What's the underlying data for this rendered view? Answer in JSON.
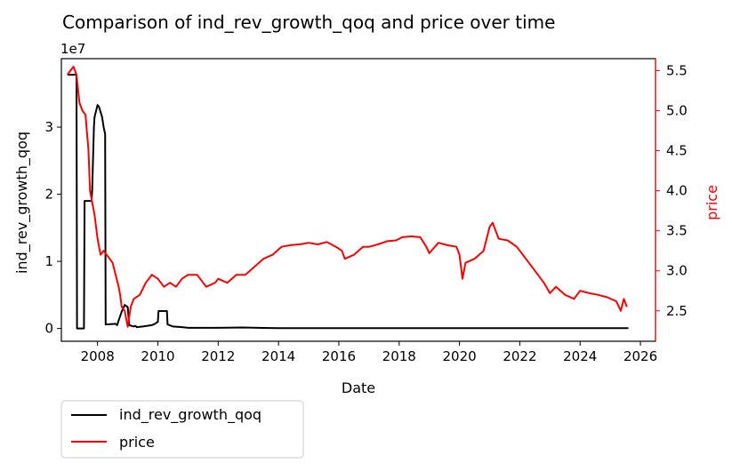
{
  "chart_data": {
    "type": "line",
    "title": "Comparison of ind_rev_growth_qoq and price over time",
    "xlabel": "Date",
    "x_ticks": [
      "2008",
      "2010",
      "2012",
      "2014",
      "2016",
      "2018",
      "2020",
      "2022",
      "2024",
      "2026"
    ],
    "x_range": [
      2006.8,
      2026.5
    ],
    "left_axis": {
      "label": "ind_rev_growth_qoq",
      "offset_text": "1e7",
      "ticks": [
        "0",
        "1",
        "2",
        "3"
      ],
      "range": [
        -1.9,
        40.2
      ],
      "unit_multiplier": 1
    },
    "right_axis": {
      "label": "price",
      "ticks": [
        "2.5",
        "3.0",
        "3.5",
        "4.0",
        "4.5",
        "5.0",
        "5.5"
      ],
      "range": [
        2.12,
        5.65
      ],
      "color": "#ff0000"
    },
    "legend": {
      "placement": "below-left"
    },
    "series": [
      {
        "name": "ind_rev_growth_qoq",
        "axis": "left",
        "color": "#000000",
        "units": "1e6",
        "x": [
          2007.0,
          2007.3,
          2007.32,
          2007.55,
          2007.57,
          2007.8,
          2007.82,
          2007.88,
          2007.9,
          2008.0,
          2008.05,
          2008.15,
          2008.2,
          2008.25,
          2008.27,
          2008.6,
          2008.65,
          2008.7,
          2008.8,
          2008.9,
          2009.0,
          2009.05,
          2009.2,
          2009.25,
          2009.3,
          2009.5,
          2009.8,
          2009.9,
          2010.0,
          2010.02,
          2010.3,
          2010.32,
          2010.5,
          2010.8,
          2011.0,
          2012.0,
          2012.8,
          2013.5,
          2014.0,
          2016.0,
          2017.0,
          2018.0,
          2019.0,
          2020.0,
          2022.0,
          2024.0,
          2025.6
        ],
        "values": [
          37.8,
          37.8,
          0.0,
          0.0,
          19.0,
          19.0,
          20.5,
          30.0,
          31.5,
          33.3,
          33.0,
          31.5,
          30.0,
          29.0,
          0.6,
          0.7,
          0.5,
          1.2,
          2.5,
          3.5,
          3.2,
          0.5,
          0.3,
          0.4,
          0.2,
          0.3,
          0.5,
          0.7,
          1.0,
          2.6,
          2.6,
          0.6,
          0.3,
          0.2,
          0.1,
          0.1,
          0.15,
          0.08,
          0.05,
          0.05,
          0.06,
          0.05,
          0.05,
          0.05,
          0.05,
          0.05,
          0.05
        ]
      },
      {
        "name": "price",
        "axis": "right",
        "color": "#ff0000",
        "units": "price",
        "x": [
          2007.0,
          2007.1,
          2007.2,
          2007.3,
          2007.4,
          2007.5,
          2007.6,
          2007.7,
          2007.75,
          2007.8,
          2007.85,
          2007.9,
          2008.0,
          2008.1,
          2008.2,
          2008.3,
          2008.4,
          2008.5,
          2008.6,
          2008.7,
          2008.75,
          2008.8,
          2008.9,
          2009.0,
          2009.1,
          2009.2,
          2009.4,
          2009.6,
          2009.8,
          2010.0,
          2010.2,
          2010.4,
          2010.6,
          2010.8,
          2011.0,
          2011.3,
          2011.6,
          2011.9,
          2012.0,
          2012.3,
          2012.6,
          2012.9,
          2013.2,
          2013.5,
          2013.8,
          2014.1,
          2014.4,
          2014.7,
          2015.0,
          2015.3,
          2015.6,
          2015.9,
          2016.1,
          2016.2,
          2016.5,
          2016.8,
          2017.0,
          2017.3,
          2017.6,
          2017.9,
          2018.1,
          2018.4,
          2018.7,
          2018.9,
          2019.0,
          2019.3,
          2019.6,
          2019.9,
          2020.0,
          2020.1,
          2020.2,
          2020.5,
          2020.8,
          2021.0,
          2021.1,
          2021.3,
          2021.6,
          2021.9,
          2022.2,
          2022.5,
          2022.8,
          2023.0,
          2023.2,
          2023.5,
          2023.8,
          2024.0,
          2024.3,
          2024.6,
          2024.9,
          2025.2,
          2025.35,
          2025.45,
          2025.55
        ],
        "values": [
          5.45,
          5.5,
          5.55,
          5.45,
          5.1,
          5.0,
          4.95,
          4.5,
          4.0,
          3.9,
          3.8,
          3.7,
          3.4,
          3.2,
          3.25,
          3.2,
          3.15,
          3.1,
          2.95,
          2.8,
          2.7,
          2.55,
          2.5,
          2.3,
          2.55,
          2.65,
          2.7,
          2.85,
          2.95,
          2.9,
          2.8,
          2.85,
          2.8,
          2.9,
          2.95,
          2.95,
          2.8,
          2.85,
          2.9,
          2.85,
          2.95,
          2.95,
          3.05,
          3.15,
          3.2,
          3.3,
          3.32,
          3.33,
          3.35,
          3.33,
          3.36,
          3.3,
          3.25,
          3.15,
          3.2,
          3.3,
          3.3,
          3.33,
          3.37,
          3.38,
          3.42,
          3.43,
          3.42,
          3.3,
          3.22,
          3.35,
          3.32,
          3.3,
          3.2,
          2.9,
          3.1,
          3.15,
          3.25,
          3.55,
          3.6,
          3.4,
          3.38,
          3.3,
          3.15,
          3.0,
          2.85,
          2.72,
          2.8,
          2.7,
          2.65,
          2.75,
          2.72,
          2.7,
          2.67,
          2.62,
          2.5,
          2.65,
          2.55
        ]
      }
    ]
  }
}
